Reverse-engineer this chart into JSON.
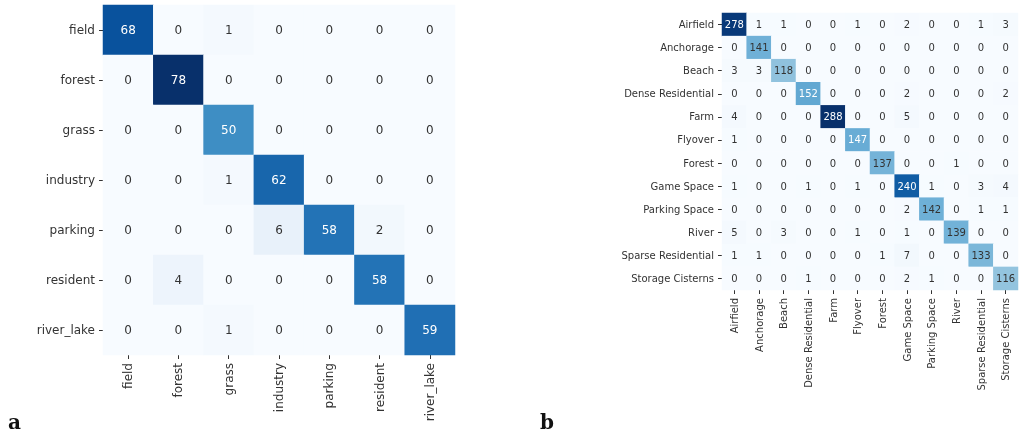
{
  "chart_data": [
    {
      "type": "heatmap",
      "categories": [
        "field",
        "forest",
        "grass",
        "industry",
        "parking",
        "resident",
        "river_lake"
      ],
      "y_categories": [
        "field",
        "forest",
        "grass",
        "industry",
        "parking",
        "resident",
        "river_lake"
      ],
      "data_labels": true,
      "annotations": [
        "a"
      ],
      "cells": [
        [
          68,
          0,
          1,
          0,
          0,
          0,
          0
        ],
        [
          0,
          78,
          0,
          0,
          0,
          0,
          0
        ],
        [
          0,
          0,
          50,
          0,
          0,
          0,
          0
        ],
        [
          0,
          0,
          1,
          62,
          0,
          0,
          0
        ],
        [
          0,
          0,
          0,
          6,
          58,
          2,
          0
        ],
        [
          0,
          4,
          0,
          0,
          0,
          58,
          0
        ],
        [
          0,
          0,
          1,
          0,
          0,
          0,
          59
        ]
      ]
    },
    {
      "type": "heatmap",
      "categories": [
        "Airfield",
        "Anchorage",
        "Beach",
        "Dense Residential",
        "Farm",
        "Flyover",
        "Forest",
        "Game Space",
        "Parking Space",
        "River",
        "Sparse Residential",
        "Storage Cisterns"
      ],
      "y_categories": [
        "Airfield",
        "Anchorage",
        "Beach",
        "Dense Residential",
        "Farm",
        "Flyover",
        "Forest",
        "Game Space",
        "Parking Space",
        "River",
        "Sparse Residential",
        "Storage Cisterns"
      ],
      "data_labels": true,
      "annotations": [
        "b"
      ],
      "cells": [
        [
          278,
          1,
          1,
          0,
          0,
          1,
          0,
          2,
          0,
          0,
          1,
          3
        ],
        [
          0,
          141,
          0,
          0,
          0,
          0,
          0,
          0,
          0,
          0,
          0,
          0
        ],
        [
          3,
          3,
          118,
          0,
          0,
          0,
          0,
          0,
          0,
          0,
          0,
          0
        ],
        [
          0,
          0,
          0,
          152,
          0,
          0,
          0,
          2,
          0,
          0,
          0,
          2
        ],
        [
          4,
          0,
          0,
          0,
          288,
          0,
          0,
          5,
          0,
          0,
          0,
          0
        ],
        [
          1,
          0,
          0,
          0,
          0,
          147,
          0,
          0,
          0,
          0,
          0,
          0
        ],
        [
          0,
          0,
          0,
          0,
          0,
          0,
          137,
          0,
          0,
          1,
          0,
          0
        ],
        [
          1,
          0,
          0,
          1,
          0,
          1,
          0,
          240,
          1,
          0,
          3,
          4
        ],
        [
          0,
          0,
          0,
          0,
          0,
          0,
          0,
          2,
          142,
          0,
          1,
          1
        ],
        [
          5,
          0,
          3,
          0,
          0,
          1,
          0,
          1,
          0,
          139,
          0,
          0
        ],
        [
          1,
          1,
          0,
          0,
          0,
          0,
          1,
          7,
          0,
          0,
          133,
          0
        ],
        [
          0,
          0,
          0,
          1,
          0,
          0,
          0,
          2,
          1,
          0,
          0,
          116
        ]
      ]
    }
  ]
}
